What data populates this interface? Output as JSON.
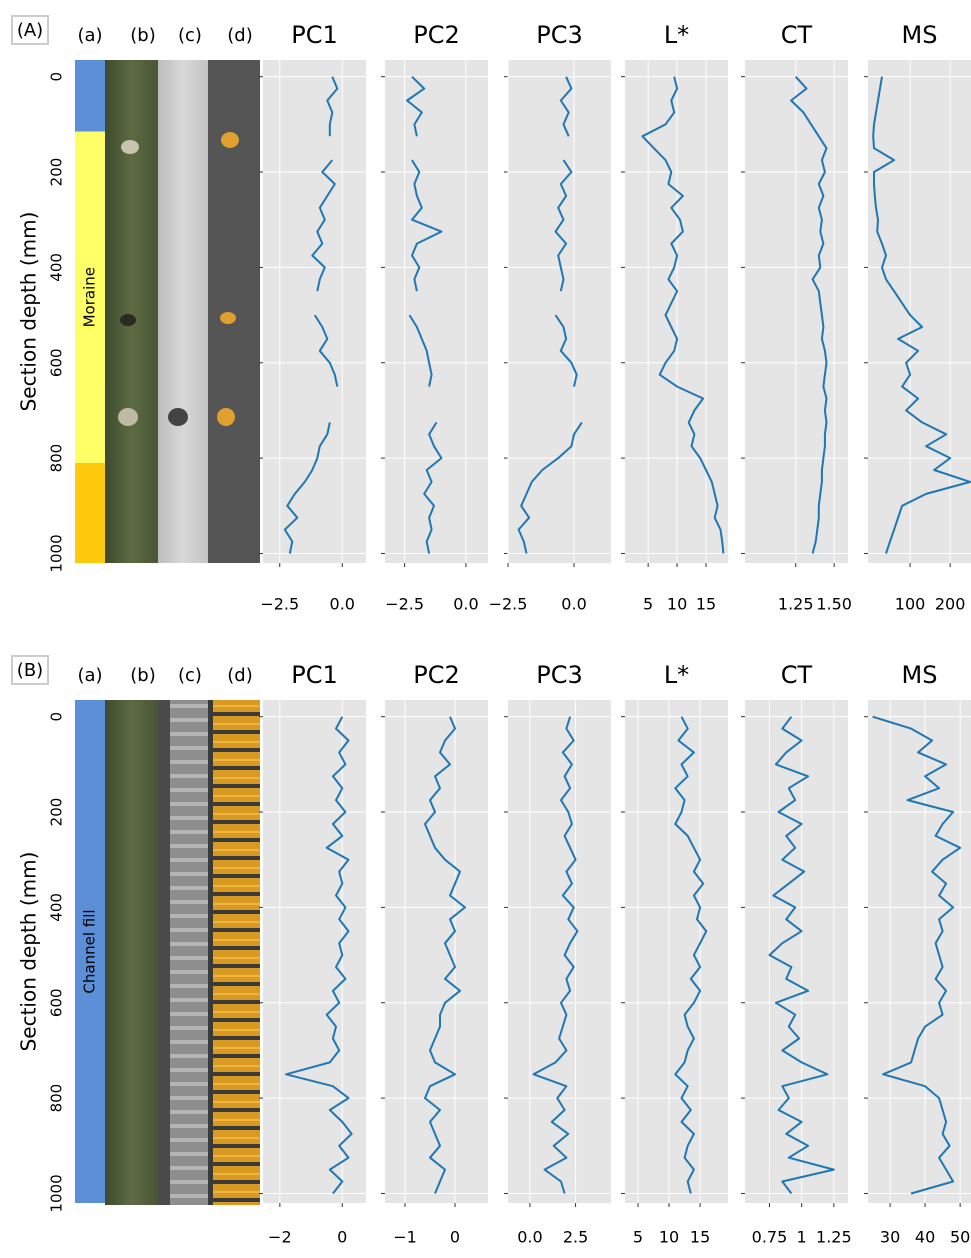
{
  "chart_data": [
    {
      "panel_label": "(A)",
      "columns": [
        "(a)",
        "(b)",
        "(c)",
        "(d)"
      ],
      "ylabel": "Section depth (mm)",
      "ylim": [
        -35,
        1020
      ],
      "yticks": [
        0,
        200,
        400,
        600,
        800,
        1000
      ],
      "unit_label": "Moraine",
      "units": [
        {
          "top": -35,
          "bottom": 115,
          "color": "#5b8fd8"
        },
        {
          "top": 115,
          "bottom": 810,
          "color": "#ffff66"
        },
        {
          "top": 810,
          "bottom": 1020,
          "color": "#ffc90e"
        }
      ],
      "depth": [
        0,
        25,
        50,
        75,
        100,
        125,
        150,
        175,
        200,
        225,
        250,
        275,
        300,
        325,
        350,
        375,
        400,
        425,
        450,
        475,
        500,
        525,
        550,
        575,
        600,
        625,
        650,
        675,
        700,
        725,
        750,
        775,
        800,
        825,
        850,
        875,
        900,
        925,
        950,
        975,
        1000
      ],
      "plots": [
        {
          "type": "line",
          "title": "PC1",
          "color": "#1f77b4",
          "xlim": [
            -3.17,
            0.95
          ],
          "xticks": [
            {
              "value": -2.5,
              "label": "−2.5"
            },
            {
              "value": 0,
              "label": "0.0"
            }
          ],
          "values": [
            -0.4,
            -0.2,
            -0.6,
            -0.4,
            -0.5,
            -0.5,
            null,
            -0.4,
            -0.8,
            -0.3,
            -0.6,
            -0.9,
            -0.7,
            -1.0,
            -0.8,
            -1.2,
            -0.7,
            -0.9,
            -1.0,
            null,
            -1.1,
            -0.8,
            -0.6,
            -0.9,
            -0.5,
            -0.3,
            -0.2,
            null,
            null,
            -0.5,
            -0.6,
            -0.9,
            -1.0,
            -1.2,
            -1.5,
            -1.9,
            -2.2,
            -1.8,
            -2.3,
            -2.0,
            -2.1
          ]
        },
        {
          "type": "line",
          "title": "PC2",
          "color": "#1f77b4",
          "xlim": [
            -3.3,
            0.9
          ],
          "xticks": [
            {
              "value": -2.5,
              "label": "−2.5"
            },
            {
              "value": 0,
              "label": "0.0"
            }
          ],
          "values": [
            -2.2,
            -1.7,
            -2.4,
            -1.8,
            -2.1,
            -2.0,
            null,
            -2.2,
            -1.9,
            -2.1,
            -2.0,
            -1.8,
            -2.2,
            -1.0,
            -2.0,
            -2.2,
            -1.9,
            -2.1,
            -2.0,
            null,
            -2.3,
            -2.0,
            -1.8,
            -1.6,
            -1.5,
            -1.4,
            -1.5,
            null,
            null,
            -1.2,
            -1.5,
            -1.3,
            -1.0,
            -1.6,
            -1.4,
            -1.7,
            -1.3,
            -1.5,
            -1.4,
            -1.6,
            -1.5
          ]
        },
        {
          "type": "line",
          "title": "PC3",
          "color": "#1f77b4",
          "xlim": [
            -2.5,
            1.4
          ],
          "xticks": [
            {
              "value": -2.5,
              "label": "−2.5"
            },
            {
              "value": 0,
              "label": "0.0"
            }
          ],
          "values": [
            -0.3,
            -0.1,
            -0.5,
            -0.2,
            -0.4,
            -0.2,
            null,
            -0.4,
            -0.1,
            -0.5,
            -0.3,
            -0.6,
            -0.4,
            -0.7,
            -0.3,
            -0.6,
            -0.5,
            -0.4,
            -0.5,
            null,
            -0.7,
            -0.4,
            -0.3,
            -0.5,
            -0.1,
            0.1,
            0.0,
            null,
            null,
            0.3,
            0.0,
            -0.1,
            -0.6,
            -1.2,
            -1.6,
            -1.8,
            -2.0,
            -1.7,
            -2.1,
            -1.9,
            -1.8
          ]
        },
        {
          "type": "line",
          "title": "L*",
          "color": "#1f77b4",
          "xlim": [
            1.0,
            18.8
          ],
          "xticks": [
            5,
            10,
            15
          ],
          "values": [
            9.5,
            10,
            9,
            9.5,
            8,
            4,
            6,
            8,
            9,
            8.5,
            11,
            9,
            10.5,
            11,
            9,
            10,
            9.5,
            8.5,
            10,
            9,
            8,
            9,
            10,
            9.5,
            8,
            7,
            10,
            14.5,
            13,
            12,
            13,
            12.5,
            14,
            15,
            16,
            16.5,
            17,
            16.5,
            17.5,
            17.8,
            18
          ]
        },
        {
          "type": "line",
          "title": "CT",
          "color": "#1f77b4",
          "xlim": [
            0.92,
            1.59
          ],
          "xticks": [
            1.25,
            {
              "value": 1.5,
              "label": "1.50"
            }
          ],
          "values": [
            1.25,
            1.32,
            1.22,
            1.3,
            1.35,
            1.4,
            1.45,
            1.42,
            1.44,
            1.4,
            1.43,
            1.4,
            1.42,
            1.41,
            1.43,
            1.4,
            1.41,
            1.36,
            1.4,
            1.41,
            1.42,
            1.43,
            1.42,
            1.44,
            1.45,
            1.44,
            1.43,
            1.45,
            1.44,
            1.45,
            1.44,
            1.44,
            1.43,
            1.42,
            1.42,
            1.41,
            1.4,
            1.4,
            1.39,
            1.38,
            1.36
          ]
        },
        {
          "type": "line",
          "title": "MS",
          "color": "#1f77b4",
          "xlim": [
            -5,
            252
          ],
          "xticks": [
            100,
            200
          ],
          "values": [
            30,
            25,
            20,
            15,
            10,
            8,
            10,
            60,
            10,
            10,
            12,
            15,
            20,
            18,
            30,
            40,
            30,
            40,
            60,
            80,
            100,
            130,
            70,
            120,
            90,
            100,
            80,
            120,
            90,
            130,
            190,
            140,
            200,
            160,
            250,
            140,
            80,
            70,
            60,
            50,
            40
          ]
        }
      ]
    },
    {
      "panel_label": "(B)",
      "columns": [
        "(a)",
        "(b)",
        "(c)",
        "(d)"
      ],
      "ylabel": "Section depth (mm)",
      "ylim": [
        -35,
        1020
      ],
      "yticks": [
        0,
        200,
        400,
        600,
        800,
        1000
      ],
      "unit_label": "Channel fill",
      "units": [
        {
          "top": -35,
          "bottom": 1020,
          "color": "#5b8fd8"
        }
      ],
      "depth": [
        0,
        25,
        50,
        75,
        100,
        125,
        150,
        175,
        200,
        225,
        250,
        275,
        300,
        325,
        350,
        375,
        400,
        425,
        450,
        475,
        500,
        525,
        550,
        575,
        600,
        625,
        650,
        675,
        700,
        725,
        750,
        775,
        800,
        825,
        850,
        875,
        900,
        925,
        950,
        975,
        1000
      ],
      "plots": [
        {
          "type": "line",
          "title": "PC1",
          "color": "#1f77b4",
          "xlim": [
            -2.54,
            0.76
          ],
          "xticks": [
            {
              "value": -2,
              "label": "−2"
            },
            0
          ],
          "values": [
            0,
            -0.2,
            0.2,
            -0.1,
            0.1,
            -0.3,
            0,
            -0.2,
            0.1,
            -0.3,
            0,
            -0.5,
            0.2,
            -0.1,
            0,
            -0.2,
            0.1,
            -0.1,
            0.2,
            -0.1,
            0,
            -0.2,
            0.1,
            -0.3,
            -0.1,
            -0.5,
            -0.2,
            -0.3,
            -0.1,
            -0.4,
            -1.8,
            -0.3,
            0.2,
            -0.4,
            0,
            0.3,
            -0.1,
            0.2,
            -0.4,
            0,
            -0.3
          ]
        },
        {
          "type": "line",
          "title": "PC2",
          "color": "#1f77b4",
          "xlim": [
            -1.4,
            0.66
          ],
          "xticks": [
            {
              "value": -1,
              "label": "−1"
            },
            0
          ],
          "values": [
            -0.1,
            0,
            -0.2,
            -0.3,
            -0.1,
            -0.4,
            -0.3,
            -0.5,
            -0.4,
            -0.6,
            -0.5,
            -0.4,
            -0.2,
            0.1,
            0,
            -0.1,
            0.2,
            -0.1,
            0,
            -0.2,
            -0.1,
            0,
            -0.2,
            0.1,
            -0.2,
            -0.3,
            -0.3,
            -0.4,
            -0.5,
            -0.4,
            0,
            -0.5,
            -0.6,
            -0.3,
            -0.5,
            -0.4,
            -0.3,
            -0.5,
            -0.2,
            -0.3,
            -0.4
          ]
        },
        {
          "type": "line",
          "title": "PC3",
          "color": "#1f77b4",
          "xlim": [
            -1.2,
            4.44
          ],
          "xticks": [
            {
              "value": 0,
              "label": "0.0"
            },
            2.5
          ],
          "values": [
            2.2,
            2.0,
            2.4,
            1.8,
            2.3,
            1.9,
            2.2,
            1.7,
            2.1,
            2.3,
            1.9,
            2.2,
            2.5,
            2.0,
            2.3,
            1.8,
            2.4,
            2.1,
            2.6,
            2.2,
            1.9,
            2.4,
            2.0,
            2.2,
            1.7,
            2.0,
            1.8,
            1.6,
            2.0,
            1.4,
            0.2,
            2.0,
            1.5,
            1.9,
            1.2,
            2.1,
            1.3,
            2.0,
            0.8,
            1.7,
            1.9
          ]
        },
        {
          "type": "line",
          "title": "L*",
          "color": "#1f77b4",
          "xlim": [
            2.9,
            19.5
          ],
          "xticks": [
            5,
            10,
            15
          ],
          "values": [
            12,
            13,
            11.5,
            14,
            12,
            13,
            11,
            12.5,
            12,
            11,
            13,
            14,
            15,
            14,
            15.5,
            14,
            15,
            14.5,
            16,
            15,
            14,
            15,
            13.5,
            15,
            14,
            12.5,
            13,
            14,
            13,
            12.5,
            11,
            13,
            12,
            13.5,
            12,
            14,
            13,
            12.5,
            14,
            13,
            13.5
          ]
        },
        {
          "type": "line",
          "title": "CT",
          "color": "#1f77b4",
          "xlim": [
            0.56,
            1.36
          ],
          "xticks": [
            0.75,
            1,
            1.25
          ],
          "values": [
            0.92,
            0.85,
            1.0,
            0.88,
            0.8,
            1.05,
            0.9,
            0.95,
            0.82,
            1.0,
            0.88,
            0.95,
            0.85,
            1.02,
            0.9,
            0.78,
            0.95,
            0.88,
            1.0,
            0.85,
            0.75,
            0.92,
            0.88,
            1.05,
            0.8,
            0.95,
            0.9,
            0.98,
            0.85,
            1.0,
            1.2,
            0.85,
            0.9,
            0.82,
            1.0,
            0.88,
            1.05,
            0.9,
            1.25,
            0.85,
            0.92
          ]
        },
        {
          "type": "line",
          "title": "MS",
          "color": "#1f77b4",
          "xlim": [
            23.7,
            53.1
          ],
          "xticks": [
            30,
            40,
            50
          ],
          "values": [
            25,
            36,
            42,
            38,
            46,
            40,
            44,
            35,
            48,
            45,
            43,
            50,
            45,
            42,
            46,
            44,
            48,
            44,
            45,
            43,
            44,
            45,
            43,
            46,
            44,
            45,
            40,
            38,
            37,
            36,
            28,
            40,
            44,
            45,
            46,
            45,
            47,
            44,
            46,
            48,
            36
          ]
        }
      ]
    }
  ]
}
